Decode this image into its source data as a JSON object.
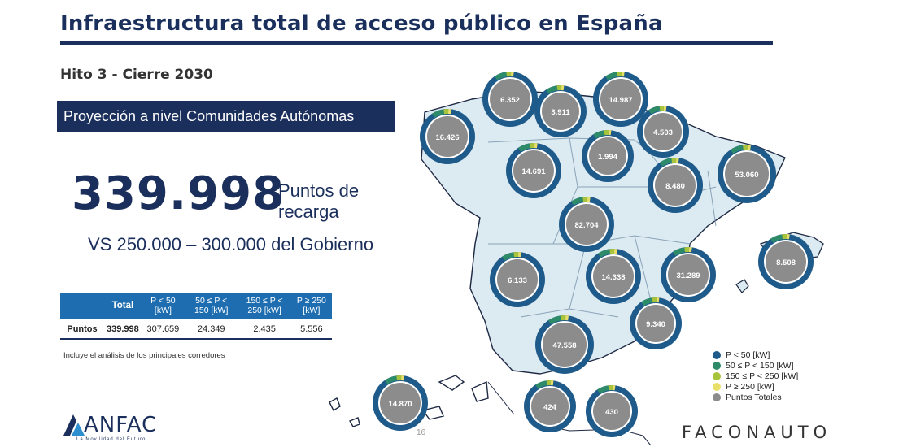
{
  "title": "Infraestructura total de acceso público en España",
  "subtitle": "Hito 3 - Cierre 2030",
  "banner": "Proyección a nivel Comunidades Autónomas",
  "headline": {
    "number": "339.998",
    "label": "Puntos de recarga",
    "comparison": "VS 250.000 – 300.000 del Gobierno"
  },
  "table": {
    "headers": [
      "",
      "Total",
      "P < 50 [kW]",
      "50 ≤ P < 150 [kW]",
      "150 ≤ P < 250 [kW]",
      "P ≥ 250 [kW]"
    ],
    "row": [
      "Puntos",
      "339.998",
      "307.659",
      "24.349",
      "2.435",
      "5.556"
    ]
  },
  "note": "Incluye el análisis de los principales corredores",
  "legend": [
    {
      "label": "P < 50 [kW]",
      "color": "#1e5a8a"
    },
    {
      "label": "50 ≤ P < 150 [kW]",
      "color": "#2e8b6a"
    },
    {
      "label": "150 ≤ P < 250 [kW]",
      "color": "#a8c43c"
    },
    {
      "label": "P ≥ 250 [kW]",
      "color": "#e8e06a"
    },
    {
      "label": "Puntos Totales",
      "color": "#8c8c8c"
    }
  ],
  "regions": [
    {
      "name": "Galicia",
      "value": "16.426"
    },
    {
      "name": "Asturias",
      "value": "6.352"
    },
    {
      "name": "Cantabria",
      "value": "3.911"
    },
    {
      "name": "País Vasco",
      "value": "14.987"
    },
    {
      "name": "Navarra",
      "value": "4.503"
    },
    {
      "name": "La Rioja",
      "value": "1.994"
    },
    {
      "name": "Castilla y León",
      "value": "14.691"
    },
    {
      "name": "Aragón",
      "value": "8.480"
    },
    {
      "name": "Cataluña",
      "value": "53.060"
    },
    {
      "name": "Madrid",
      "value": "82.704"
    },
    {
      "name": "Baleares",
      "value": "8.508"
    },
    {
      "name": "Extremadura",
      "value": "6.133"
    },
    {
      "name": "Castilla-La Mancha",
      "value": "14.338"
    },
    {
      "name": "Comunidad Valenciana",
      "value": "31.289"
    },
    {
      "name": "Murcia",
      "value": "9.340"
    },
    {
      "name": "Andalucía",
      "value": "47.558"
    },
    {
      "name": "Canarias",
      "value": "14.870"
    },
    {
      "name": "Ceuta",
      "value": "424"
    },
    {
      "name": "Melilla",
      "value": "430"
    }
  ],
  "logos": {
    "anfac": "ANFAC",
    "anfac_tagline": "La Movilidad del Futuro",
    "faconauto": "FACONAUTO"
  },
  "page_number": "16"
}
